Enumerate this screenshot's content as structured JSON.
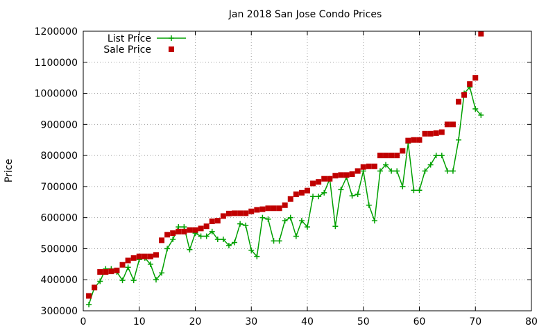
{
  "chart_data": {
    "type": "scatter",
    "title": "Jan 2018 San Jose Condo Prices",
    "xlabel": "",
    "ylabel": "Price",
    "xlim": [
      0,
      80
    ],
    "ylim": [
      300000,
      1200000
    ],
    "x_ticks": [
      "0",
      "10",
      "20",
      "30",
      "40",
      "50",
      "60",
      "70",
      "80"
    ],
    "y_ticks": [
      "300000",
      "400000",
      "500000",
      "600000",
      "700000",
      "800000",
      "900000",
      "1000000",
      "1100000",
      "1200000"
    ],
    "grid": true,
    "legend_position": "top-left",
    "series": [
      {
        "name": "List Price",
        "style": "linespoints",
        "marker": "plus",
        "color": "#00a000",
        "points": [
          [
            1,
            320000
          ],
          [
            2,
            375000
          ],
          [
            3,
            395000
          ],
          [
            4,
            435000
          ],
          [
            5,
            435000
          ],
          [
            6,
            425000
          ],
          [
            7,
            398000
          ],
          [
            8,
            440000
          ],
          [
            9,
            398000
          ],
          [
            10,
            465000
          ],
          [
            11,
            470000
          ],
          [
            12,
            450000
          ],
          [
            13,
            400000
          ],
          [
            14,
            422000
          ],
          [
            15,
            500000
          ],
          [
            16,
            530000
          ],
          [
            17,
            570000
          ],
          [
            18,
            570000
          ],
          [
            19,
            497000
          ],
          [
            20,
            550000
          ],
          [
            21,
            540000
          ],
          [
            22,
            540000
          ],
          [
            23,
            555000
          ],
          [
            24,
            530000
          ],
          [
            25,
            530000
          ],
          [
            26,
            510000
          ],
          [
            27,
            520000
          ],
          [
            28,
            580000
          ],
          [
            29,
            575000
          ],
          [
            30,
            495000
          ],
          [
            31,
            475000
          ],
          [
            32,
            600000
          ],
          [
            33,
            595000
          ],
          [
            34,
            525000
          ],
          [
            35,
            525000
          ],
          [
            36,
            590000
          ],
          [
            37,
            600000
          ],
          [
            38,
            540000
          ],
          [
            39,
            590000
          ],
          [
            40,
            570000
          ],
          [
            41,
            668000
          ],
          [
            42,
            668000
          ],
          [
            43,
            680000
          ],
          [
            44,
            725000
          ],
          [
            45,
            572000
          ],
          [
            46,
            690000
          ],
          [
            47,
            730000
          ],
          [
            48,
            670000
          ],
          [
            49,
            675000
          ],
          [
            50,
            750000
          ],
          [
            51,
            640000
          ],
          [
            52,
            590000
          ],
          [
            53,
            750000
          ],
          [
            54,
            770000
          ],
          [
            55,
            750000
          ],
          [
            56,
            750000
          ],
          [
            57,
            700000
          ],
          [
            58,
            840000
          ],
          [
            59,
            688000
          ],
          [
            60,
            688000
          ],
          [
            61,
            750000
          ],
          [
            62,
            770000
          ],
          [
            63,
            800000
          ],
          [
            64,
            800000
          ],
          [
            65,
            750000
          ],
          [
            66,
            750000
          ],
          [
            67,
            850000
          ],
          [
            68,
            1000000
          ],
          [
            69,
            1020000
          ],
          [
            70,
            950000
          ],
          [
            71,
            930000
          ]
        ]
      },
      {
        "name": "Sale Price",
        "style": "points",
        "marker": "square",
        "color": "#c00000",
        "points": [
          [
            1,
            348000
          ],
          [
            2,
            375000
          ],
          [
            3,
            425000
          ],
          [
            4,
            425000
          ],
          [
            5,
            427000
          ],
          [
            6,
            430000
          ],
          [
            7,
            448000
          ],
          [
            8,
            462000
          ],
          [
            9,
            470000
          ],
          [
            10,
            475000
          ],
          [
            11,
            475000
          ],
          [
            12,
            475000
          ],
          [
            13,
            480000
          ],
          [
            14,
            527000
          ],
          [
            15,
            545000
          ],
          [
            16,
            550000
          ],
          [
            17,
            555000
          ],
          [
            18,
            555000
          ],
          [
            19,
            560000
          ],
          [
            20,
            560000
          ],
          [
            21,
            565000
          ],
          [
            22,
            572000
          ],
          [
            23,
            588000
          ],
          [
            24,
            590000
          ],
          [
            25,
            605000
          ],
          [
            26,
            613000
          ],
          [
            27,
            614000
          ],
          [
            28,
            614000
          ],
          [
            29,
            614000
          ],
          [
            30,
            620000
          ],
          [
            31,
            625000
          ],
          [
            32,
            627000
          ],
          [
            33,
            630000
          ],
          [
            34,
            630000
          ],
          [
            35,
            630000
          ],
          [
            36,
            640000
          ],
          [
            37,
            660000
          ],
          [
            38,
            675000
          ],
          [
            39,
            680000
          ],
          [
            40,
            687000
          ],
          [
            41,
            710000
          ],
          [
            42,
            715000
          ],
          [
            43,
            725000
          ],
          [
            44,
            725000
          ],
          [
            45,
            735000
          ],
          [
            46,
            737000
          ],
          [
            47,
            737000
          ],
          [
            48,
            740000
          ],
          [
            49,
            750000
          ],
          [
            50,
            763000
          ],
          [
            51,
            765000
          ],
          [
            52,
            765000
          ],
          [
            53,
            800000
          ],
          [
            54,
            800000
          ],
          [
            55,
            800000
          ],
          [
            56,
            800000
          ],
          [
            57,
            815000
          ],
          [
            58,
            848000
          ],
          [
            59,
            850000
          ],
          [
            60,
            850000
          ],
          [
            61,
            870000
          ],
          [
            62,
            870000
          ],
          [
            63,
            872000
          ],
          [
            64,
            875000
          ],
          [
            65,
            900000
          ],
          [
            66,
            900000
          ],
          [
            67,
            973000
          ],
          [
            68,
            995000
          ],
          [
            69,
            1030000
          ],
          [
            70,
            1050000
          ],
          [
            71,
            1192000
          ]
        ]
      }
    ]
  }
}
